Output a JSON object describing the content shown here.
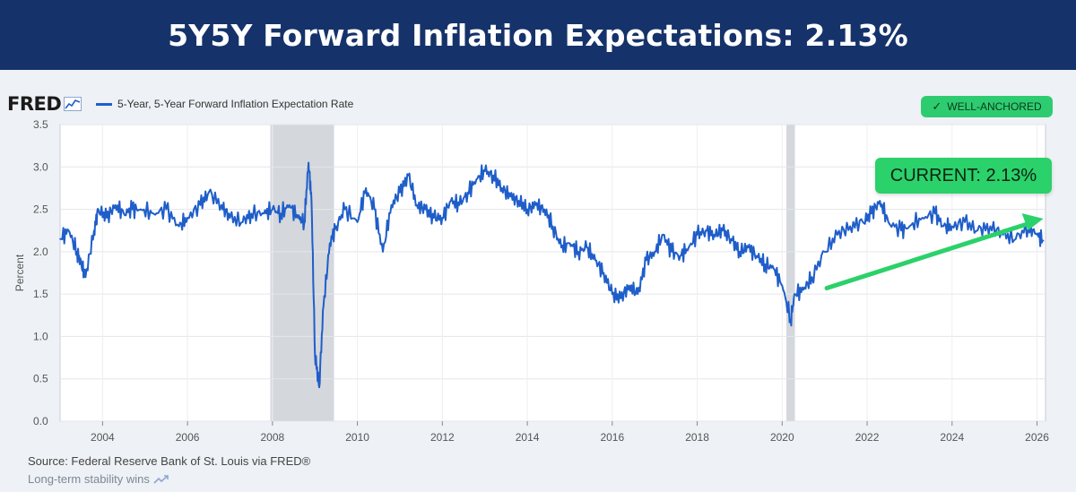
{
  "header": {
    "title": "5Y5Y Forward Inflation Expectations: 2.13%"
  },
  "logo": {
    "text": "FRED",
    "icon": "line-chart-icon"
  },
  "legend": {
    "label": "5-Year, 5-Year Forward Inflation Expectation Rate",
    "color": "#1f5ec9"
  },
  "badge": {
    "label": "WELL-ANCHORED",
    "icon": "check-icon",
    "color": "#2ecc71"
  },
  "callout": {
    "label": "CURRENT: 2.13%",
    "color": "#2bd16a"
  },
  "footer": {
    "source": "Source: Federal Reserve Bank of St. Louis via FRED®",
    "tagline": "Long-term stability wins",
    "tagline_icon": "trend-up-icon"
  },
  "chart_data": {
    "type": "line",
    "title": "5Y5Y Forward Inflation Expectations: 2.13%",
    "xlabel": "",
    "ylabel": "Percent",
    "xlim": [
      2003.0,
      2026.2
    ],
    "ylim": [
      0.0,
      3.5
    ],
    "yticks": [
      0.0,
      0.5,
      1.0,
      1.5,
      2.0,
      2.5,
      3.0,
      3.5
    ],
    "ytick_labels": [
      "0.0",
      "0.5",
      "1.0",
      "1.5",
      "2.0",
      "2.5",
      "3.0",
      "3.5"
    ],
    "xticks": [
      2004,
      2006,
      2008,
      2010,
      2012,
      2014,
      2016,
      2018,
      2020,
      2022,
      2024,
      2026
    ],
    "xtick_labels": [
      "2004",
      "2006",
      "2008",
      "2010",
      "2012",
      "2014",
      "2016",
      "2018",
      "2020",
      "2022",
      "2024",
      "2026"
    ],
    "grid": true,
    "recessions": [
      [
        2007.95,
        2009.45
      ],
      [
        2020.1,
        2020.3
      ]
    ],
    "series": [
      {
        "name": "5-Year, 5-Year Forward Inflation Expectation Rate",
        "color": "#1f5ec9",
        "x": [
          2003.0,
          2003.2,
          2003.4,
          2003.5,
          2003.6,
          2003.8,
          2003.9,
          2004.1,
          2004.3,
          2004.5,
          2004.7,
          2004.9,
          2005.2,
          2005.5,
          2005.8,
          2006.0,
          2006.3,
          2006.5,
          2006.8,
          2007.0,
          2007.3,
          2007.5,
          2007.8,
          2008.0,
          2008.2,
          2008.4,
          2008.6,
          2008.75,
          2008.85,
          2008.92,
          2009.0,
          2009.1,
          2009.2,
          2009.35,
          2009.5,
          2009.7,
          2010.0,
          2010.2,
          2010.4,
          2010.6,
          2010.8,
          2011.0,
          2011.2,
          2011.4,
          2011.6,
          2011.8,
          2012.0,
          2012.2,
          2012.4,
          2012.6,
          2012.8,
          2013.0,
          2013.2,
          2013.4,
          2013.6,
          2013.8,
          2014.0,
          2014.2,
          2014.4,
          2014.6,
          2014.8,
          2015.0,
          2015.2,
          2015.4,
          2015.6,
          2015.8,
          2016.0,
          2016.2,
          2016.4,
          2016.6,
          2016.8,
          2017.0,
          2017.2,
          2017.4,
          2017.6,
          2017.8,
          2018.0,
          2018.2,
          2018.4,
          2018.6,
          2018.8,
          2019.0,
          2019.2,
          2019.4,
          2019.6,
          2019.8,
          2020.0,
          2020.2,
          2020.3,
          2020.5,
          2020.7,
          2021.0,
          2021.3,
          2021.6,
          2021.9,
          2022.1,
          2022.3,
          2022.5,
          2022.8,
          2023.0,
          2023.3,
          2023.6,
          2023.8,
          2024.0,
          2024.3,
          2024.6,
          2024.9,
          2025.2,
          2025.5,
          2025.8,
          2026.0,
          2026.15
        ],
        "values": [
          2.15,
          2.25,
          2.0,
          1.85,
          1.7,
          2.25,
          2.5,
          2.4,
          2.55,
          2.45,
          2.5,
          2.5,
          2.45,
          2.5,
          2.3,
          2.4,
          2.55,
          2.7,
          2.55,
          2.4,
          2.35,
          2.45,
          2.45,
          2.5,
          2.45,
          2.55,
          2.4,
          2.35,
          3.05,
          2.6,
          0.8,
          0.4,
          1.35,
          2.1,
          2.3,
          2.5,
          2.35,
          2.75,
          2.5,
          2.0,
          2.55,
          2.7,
          2.9,
          2.55,
          2.5,
          2.4,
          2.4,
          2.6,
          2.55,
          2.7,
          2.85,
          2.95,
          2.9,
          2.75,
          2.65,
          2.6,
          2.5,
          2.55,
          2.5,
          2.3,
          2.05,
          2.1,
          2.0,
          2.05,
          1.9,
          1.75,
          1.5,
          1.45,
          1.6,
          1.5,
          1.9,
          2.0,
          2.2,
          2.0,
          1.95,
          2.05,
          2.2,
          2.25,
          2.2,
          2.25,
          2.15,
          2.0,
          2.05,
          1.95,
          1.85,
          1.8,
          1.6,
          1.2,
          1.5,
          1.55,
          1.7,
          2.0,
          2.2,
          2.3,
          2.35,
          2.45,
          2.6,
          2.35,
          2.25,
          2.3,
          2.4,
          2.45,
          2.3,
          2.3,
          2.35,
          2.25,
          2.3,
          2.2,
          2.15,
          2.3,
          2.2,
          2.13
        ]
      }
    ],
    "annotations": [
      "CURRENT: 2.13%",
      "WELL-ANCHORED"
    ]
  }
}
